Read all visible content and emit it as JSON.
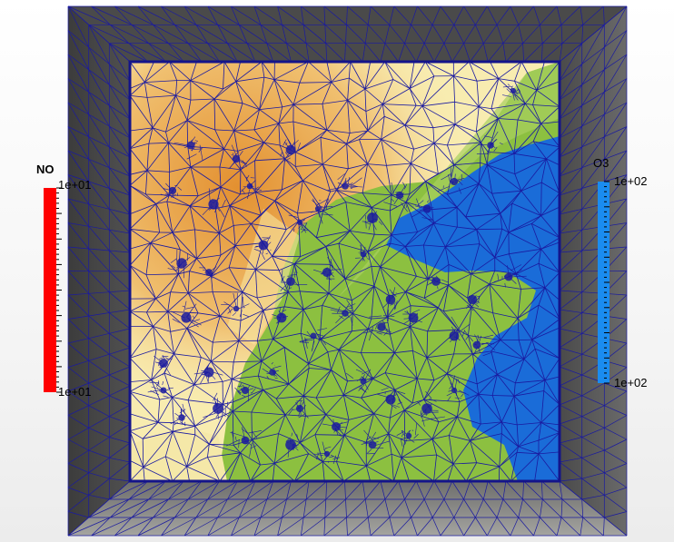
{
  "legend_no": {
    "title": "NO",
    "max_label": "1e+01",
    "min_label": "1e+01",
    "color": "#ff0000"
  },
  "legend_o3": {
    "title": "O3",
    "max_label": "1e+02",
    "min_label": "1e+02",
    "color": "#1a8cf0"
  },
  "mesh": {
    "wire_color": "#1a1aa0",
    "frame_color": "#3a3a3a",
    "floor_color": "#8a8a88",
    "field_colors": {
      "warm": "#e8a040",
      "pale": "#f8ecb0",
      "green": "#8cc040",
      "blue": "#1a6cd8"
    }
  }
}
